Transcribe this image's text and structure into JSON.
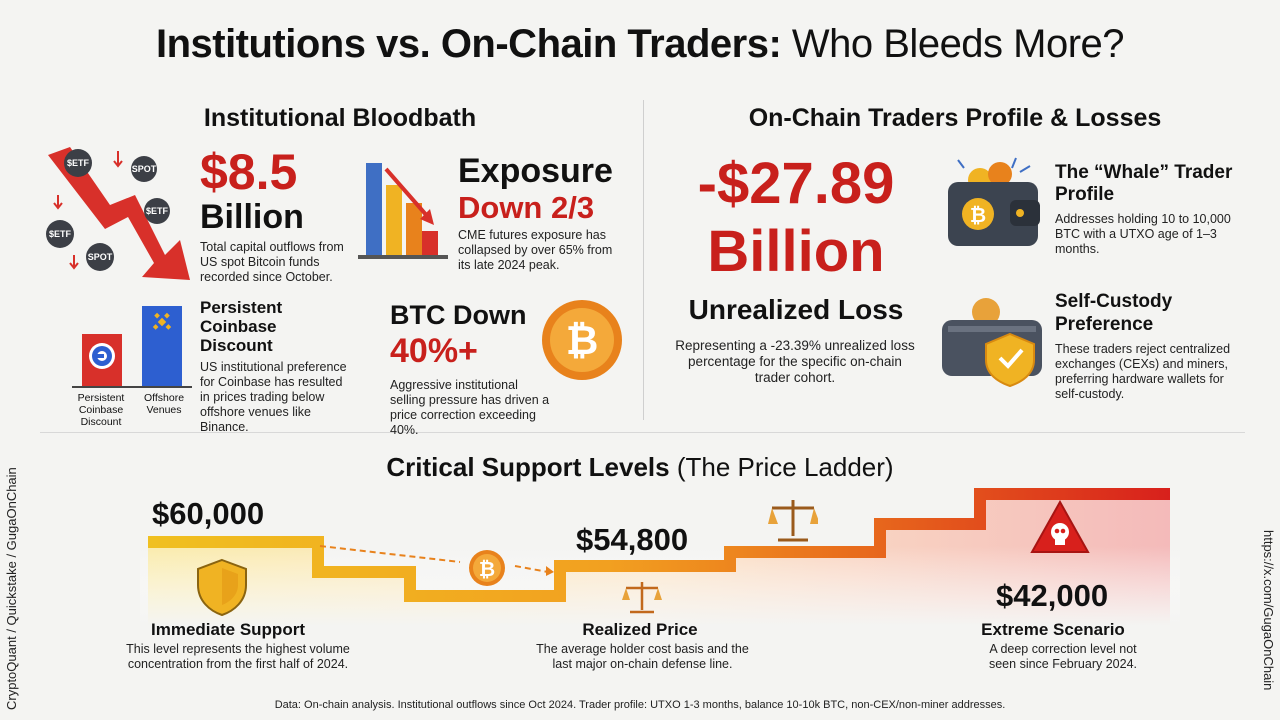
{
  "title": {
    "bold": "Institutions vs. On-Chain Traders:",
    "light": "Who Bleeds More?"
  },
  "institutional": {
    "heading": "Institutional Bloodbath",
    "outflow": {
      "amount": "$8.5",
      "unit": "Billion",
      "desc": "Total capital outflows from US spot Bitcoin funds recorded since October.",
      "coin_labels": [
        "$ETF",
        "SPOT",
        "$ETF",
        "$ETF",
        "SPOT"
      ]
    },
    "exposure": {
      "line1": "Exposure",
      "line2": "Down 2/3",
      "desc": "CME futures exposure has collapsed by over 65% from its late 2024 peak."
    },
    "coinbase": {
      "title": "Persistent Coinbase Discount",
      "desc": "US institutional preference for Coinbase has resulted in prices trading below offshore venues like Binance.",
      "bar1_label": "Persistent Coinbase Discount",
      "bar2_label": "Offshore Venues"
    },
    "btc": {
      "line1": "BTC Down",
      "line2": "40%+",
      "desc": "Aggressive institutional selling pressure has driven a price correction exceeding 40%."
    }
  },
  "onchain": {
    "heading": "On-Chain Traders Profile & Losses",
    "loss": {
      "amount": "-$27.89",
      "unit": "Billion",
      "label": "Unrealized Loss",
      "desc": "Representing a -23.39% unrealized loss percentage for the specific on-chain trader cohort."
    },
    "whale": {
      "title": "The “Whale” Trader Profile",
      "desc": "Addresses holding 10 to 10,000 BTC with a UTXO age of 1–3 months."
    },
    "custody": {
      "title": "Self-Custody Preference",
      "desc": "These traders reject centralized exchanges (CEXs) and miners, preferring hardware wallets for self-custody."
    }
  },
  "ladder": {
    "heading_bold": "Critical Support Levels",
    "heading_light": "(The Price Ladder)",
    "levels": [
      {
        "price": "$60,000",
        "label": "Immediate Support",
        "desc": "This level represents the highest volume concentration from the first half of 2024."
      },
      {
        "price": "$54,800",
        "label": "Realized Price",
        "desc": "The average holder cost basis and the last major on-chain defense line."
      },
      {
        "price": "$42,000",
        "label": "Extreme Scenario",
        "desc": "A deep correction level not seen since February 2024."
      }
    ]
  },
  "footer": "Data: On-chain analysis. Institutional outflows since Oct 2024. Trader profile: UTXO 1-3 months, balance 10-10k BTC, non-CEX/non-miner addresses.",
  "side_left": "CryptoQuant / Quickstake / GugaOnChain",
  "side_right": "https://x.com/GugaOnChain",
  "colors": {
    "accent_red": "#c8201c",
    "gold": "#f0b323",
    "orange": "#e8821c"
  }
}
